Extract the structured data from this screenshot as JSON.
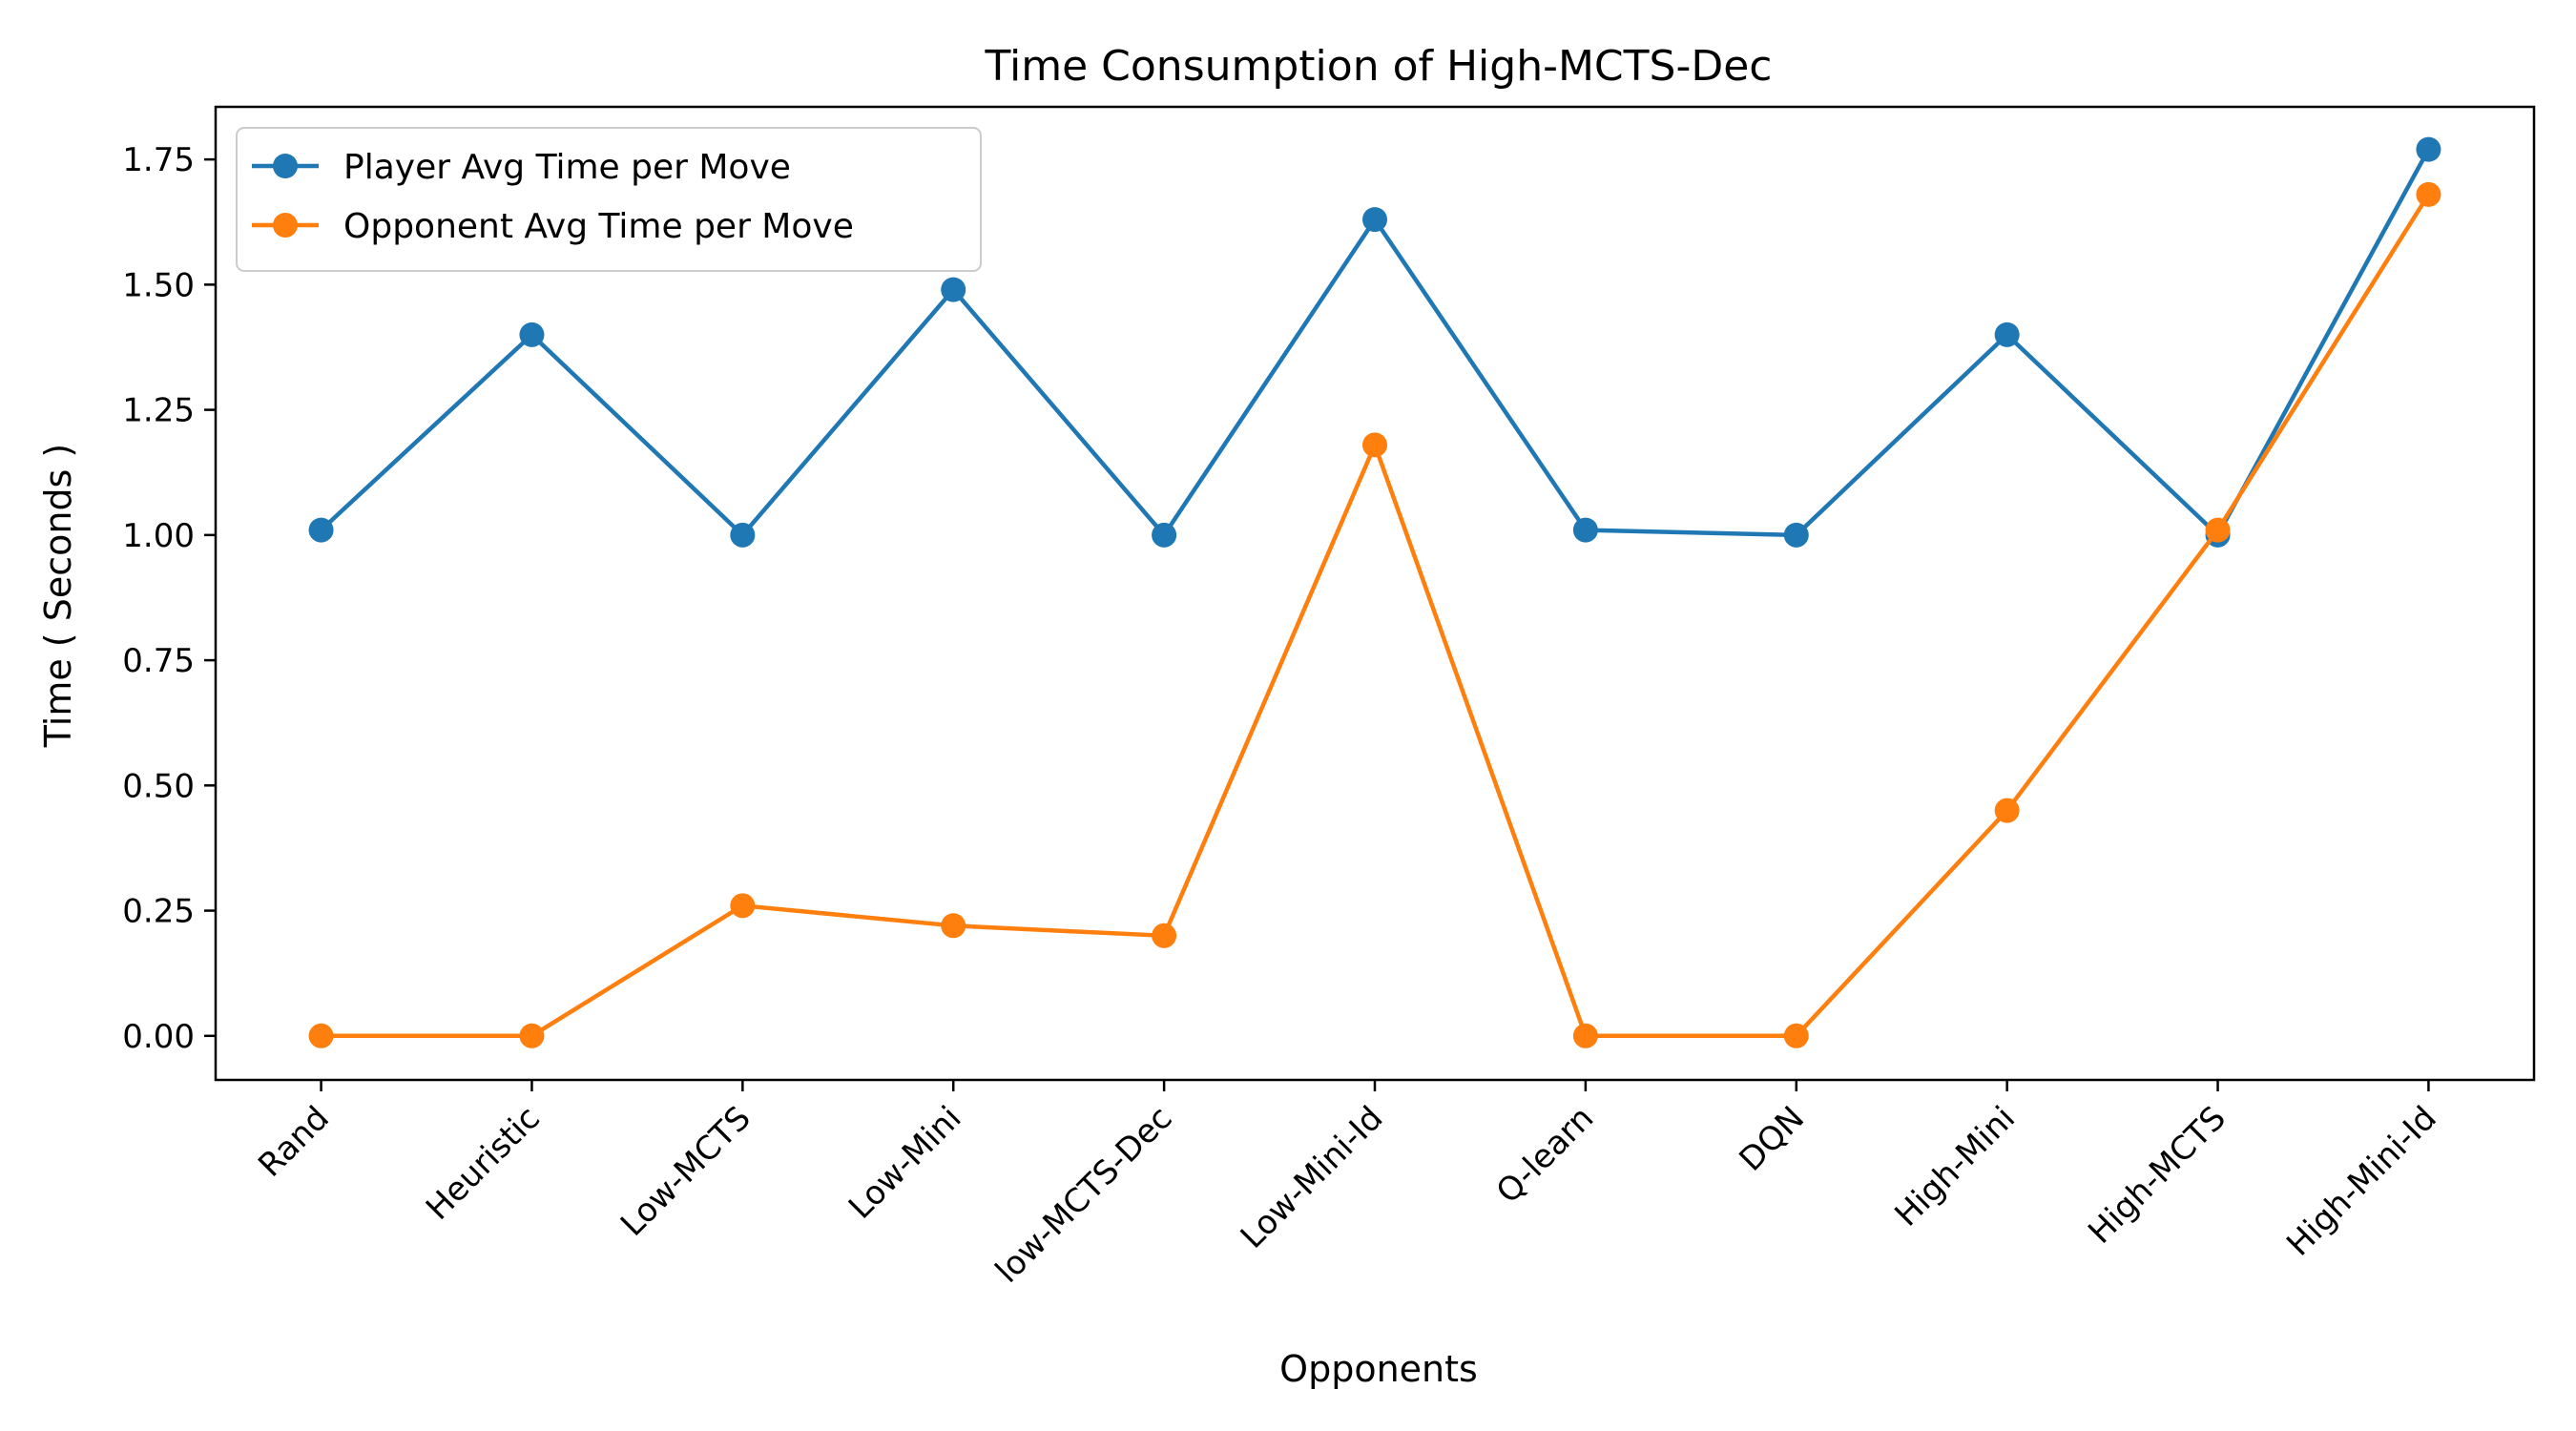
{
  "chart_data": {
    "type": "line",
    "title": "Time Consumption of High-MCTS-Dec",
    "xlabel": "Opponents",
    "ylabel": "Time ( Seconds )",
    "categories": [
      "Rand",
      "Heuristic",
      "Low-MCTS",
      "Low-Mini",
      "low-MCTS-Dec",
      "Low-Mini-Id",
      "Q-learn",
      "DQN",
      "High-Mini",
      "High-MCTS",
      "High-Mini-Id"
    ],
    "ylim": [
      -0.088,
      1.855
    ],
    "yticks": [
      "0.00",
      "0.25",
      "0.50",
      "0.75",
      "1.00",
      "1.25",
      "1.50",
      "1.75"
    ],
    "grid": false,
    "legend": "top-left",
    "series": [
      {
        "name": "Player Avg Time per Move",
        "color": "#1f77b4",
        "values": [
          1.01,
          1.4,
          1.0,
          1.49,
          1.0,
          1.63,
          1.01,
          1.0,
          1.4,
          1.0,
          1.77
        ]
      },
      {
        "name": "Opponent Avg Time per Move",
        "color": "#ff7f0e",
        "values": [
          0.0,
          0.0,
          0.26,
          0.22,
          0.2,
          1.18,
          0.0,
          0.0,
          0.45,
          1.01,
          1.68
        ]
      }
    ]
  }
}
